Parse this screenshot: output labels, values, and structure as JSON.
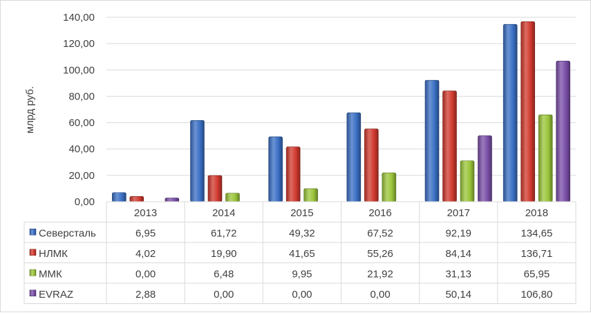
{
  "chart_data": {
    "type": "bar",
    "title": "",
    "ylabel": "млрд руб.",
    "xlabel": "",
    "ylim": [
      0,
      140
    ],
    "ytick_step": 20,
    "ytick_labels": [
      "0,00",
      "20,00",
      "40,00",
      "60,00",
      "80,00",
      "100,00",
      "120,00",
      "140,00"
    ],
    "grid": true,
    "legend": "data-table",
    "categories": [
      "2013",
      "2014",
      "2015",
      "2016",
      "2017",
      "2018"
    ],
    "series": [
      {
        "name": "Северсталь",
        "color": "#3a6fc4",
        "values": [
          6.95,
          61.72,
          49.32,
          67.52,
          92.19,
          134.65
        ],
        "labels": [
          "6,95",
          "61,72",
          "49,32",
          "67,52",
          "92,19",
          "134,65"
        ]
      },
      {
        "name": "НЛМК",
        "color": "#d0392e",
        "values": [
          4.02,
          19.9,
          41.65,
          55.26,
          84.14,
          136.71
        ],
        "labels": [
          "4,02",
          "19,90",
          "41,65",
          "55,26",
          "84,14",
          "136,71"
        ]
      },
      {
        "name": "ММК",
        "color": "#9bc53a",
        "values": [
          0.0,
          6.48,
          9.95,
          21.92,
          31.13,
          65.95
        ],
        "labels": [
          "0,00",
          "6,48",
          "9,95",
          "21,92",
          "31,13",
          "65,95"
        ]
      },
      {
        "name": "EVRAZ",
        "color": "#7a4fa8",
        "values": [
          2.88,
          0.0,
          0.0,
          0.0,
          50.14,
          106.8
        ],
        "labels": [
          "2,88",
          "0,00",
          "0,00",
          "0,00",
          "50,14",
          "106,80"
        ]
      }
    ]
  }
}
